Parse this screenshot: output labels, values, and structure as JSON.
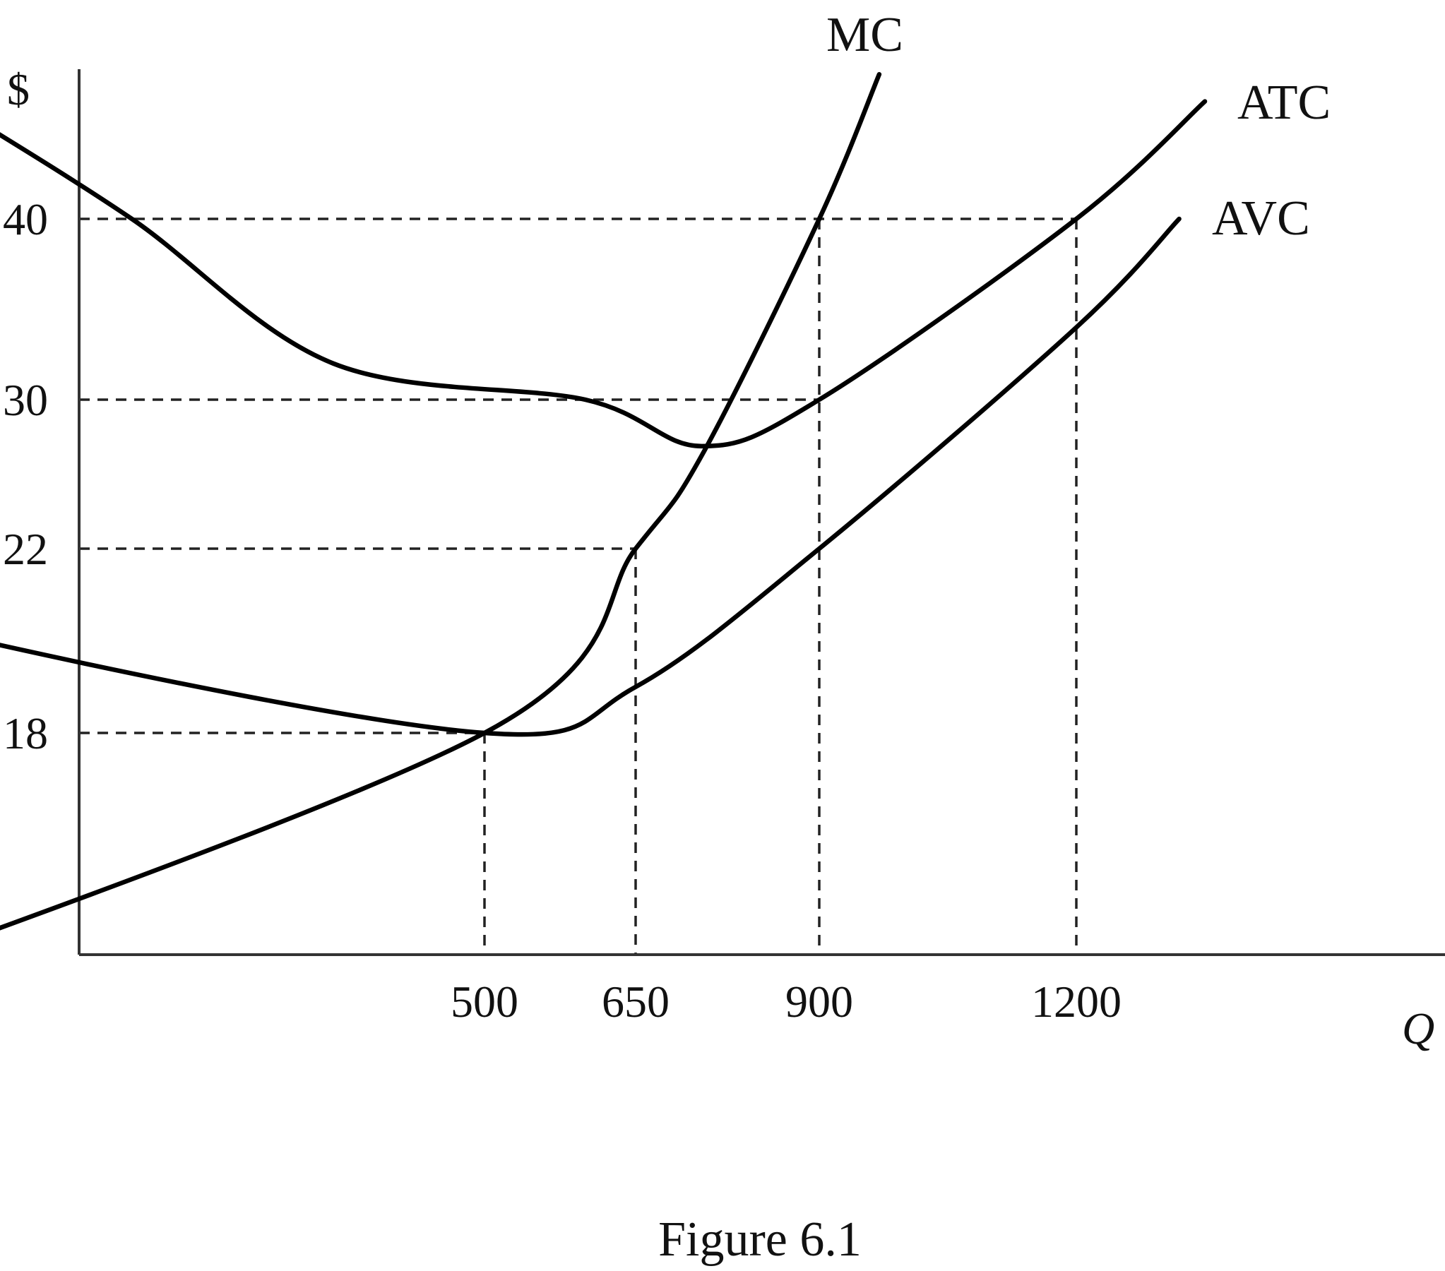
{
  "chart_data": {
    "type": "line",
    "title": "",
    "xlabel": "Q",
    "ylabel": "$",
    "x_ticks": [
      500,
      650,
      900,
      1200
    ],
    "y_ticks": [
      18,
      22,
      30,
      40
    ],
    "series": [
      {
        "name": "MC",
        "points": [
          [
            -200,
            12
          ],
          [
            500,
            18
          ],
          [
            650,
            22
          ],
          [
            740,
            27
          ],
          [
            900,
            40
          ],
          [
            970,
            48
          ]
        ]
      },
      {
        "name": "ATC",
        "points": [
          [
            -20,
            46
          ],
          [
            150,
            40
          ],
          [
            350,
            32
          ],
          [
            600,
            30
          ],
          [
            740,
            27.5
          ],
          [
            900,
            30
          ],
          [
            1200,
            40
          ],
          [
            1350,
            46.5
          ]
        ]
      },
      {
        "name": "AVC",
        "points": [
          [
            -400,
            23
          ],
          [
            0,
            20
          ],
          [
            500,
            18
          ],
          [
            650,
            19
          ],
          [
            900,
            22
          ],
          [
            1200,
            34
          ],
          [
            1320,
            40
          ]
        ]
      }
    ],
    "guides": [
      {
        "x": 500,
        "y": 18
      },
      {
        "x": 650,
        "y": 22
      },
      {
        "x": 900,
        "y": 30
      },
      {
        "x": 900,
        "y": 40
      },
      {
        "x": 1200,
        "y": 40
      }
    ],
    "grid": false,
    "legend": "none"
  },
  "caption": "Figure 6.1"
}
